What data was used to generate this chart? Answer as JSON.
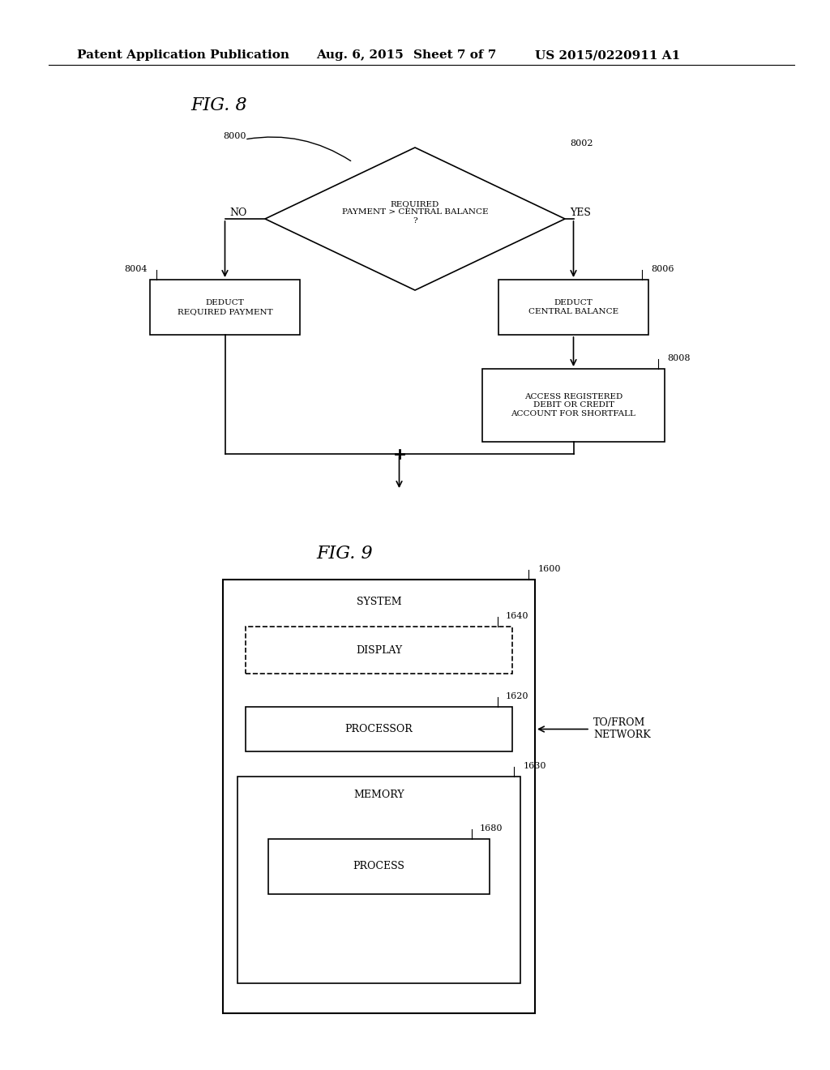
{
  "bg_color": "#ffffff",
  "header_text": "Patent Application Publication",
  "header_date": "Aug. 6, 2015",
  "header_sheet": "Sheet 7 of 7",
  "header_patent": "US 2015/0220911 A1",
  "fig8_label": "FIG. 8",
  "fig9_label": "FIG. 9",
  "fig8_ref": "8000",
  "diamond_label": "REQUIRED\nPAYMENT > CENTRAL BALANCE\n?",
  "diamond_ref": "8002",
  "no_label": "NO",
  "yes_label": "YES",
  "box_left_label": "DEDUCT\nREQUIRED PAYMENT",
  "box_left_ref": "8004",
  "box_right1_label": "DEDUCT\nCENTRAL BALANCE",
  "box_right1_ref": "8006",
  "box_right2_label": "ACCESS REGISTERED\nDEBIT OR CREDIT\nACCOUNT FOR SHORTFALL",
  "box_right2_ref": "8008",
  "fig9_system_label": "SYSTEM",
  "fig9_system_ref": "1600",
  "fig9_display_label": "DISPLAY",
  "fig9_display_ref": "1640",
  "fig9_processor_label": "PROCESSOR",
  "fig9_processor_ref": "1620",
  "fig9_memory_label": "MEMORY",
  "fig9_memory_ref": "1630",
  "fig9_process_label": "PROCESS",
  "fig9_process_ref": "1680",
  "fig9_network_label": "TO/FROM\nNETWORK",
  "line_color": "#000000",
  "text_color": "#000000",
  "font_size_header": 11,
  "font_size_label": 9,
  "font_size_ref": 8,
  "font_size_fig": 14
}
